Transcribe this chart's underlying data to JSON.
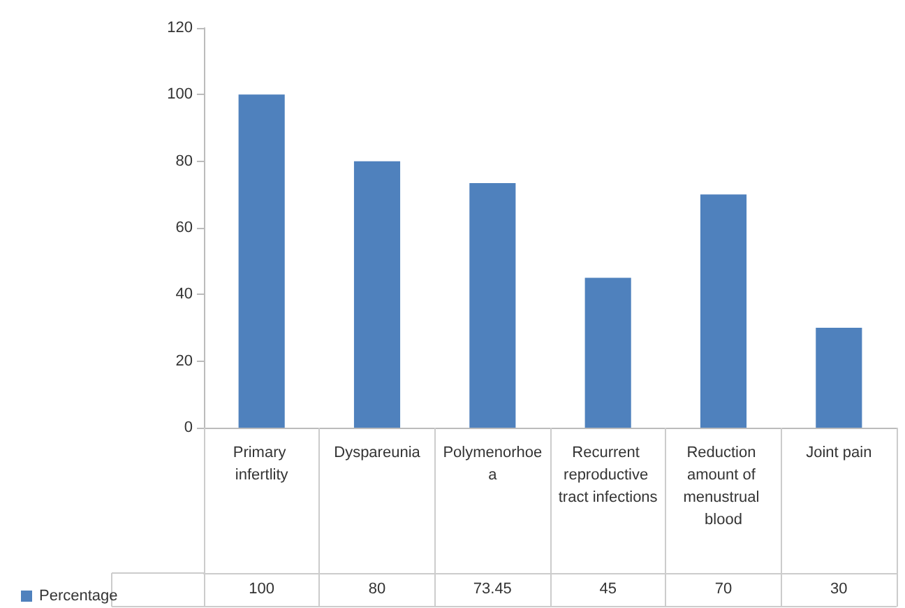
{
  "chart_data": {
    "type": "bar",
    "categories": [
      "Primary infertlity",
      "Dyspareunia",
      "Polymenorhoea",
      "Recurrent reproductive tract infections",
      "Reduction amount of menustrual blood",
      "Joint pain"
    ],
    "series": [
      {
        "name": "Percentage",
        "color": "#4f81bd",
        "values": [
          100,
          80,
          73.45,
          45,
          70,
          30
        ]
      }
    ],
    "ylim": [
      0,
      120
    ],
    "yticks": [
      0,
      20,
      40,
      60,
      80,
      100,
      120
    ],
    "grid": false,
    "legend": "bottom left",
    "data_labels": true
  }
}
